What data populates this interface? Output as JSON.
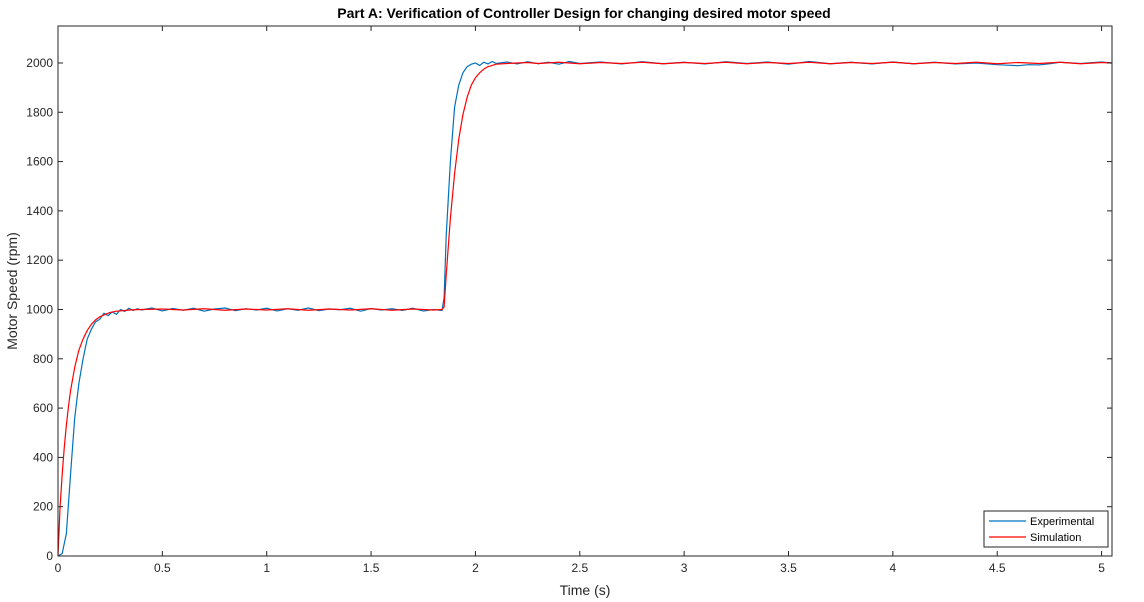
{
  "chart_data": {
    "type": "line",
    "title": "Part A: Verification of Controller Design for changing desired motor speed",
    "xlabel": "Time (s)",
    "ylabel": "Motor Speed (rpm)",
    "xlim": [
      0,
      5.05
    ],
    "ylim": [
      0,
      2150
    ],
    "xticks": [
      0,
      0.5,
      1,
      1.5,
      2,
      2.5,
      3,
      3.5,
      4,
      4.5,
      5
    ],
    "xtick_labels": [
      "0",
      "0.5",
      "1",
      "1.5",
      "2",
      "2.5",
      "3",
      "3.5",
      "4",
      "4.5",
      "5"
    ],
    "yticks": [
      0,
      200,
      400,
      600,
      800,
      1000,
      1200,
      1400,
      1600,
      1800,
      2000
    ],
    "ytick_labels": [
      "0",
      "200",
      "400",
      "600",
      "800",
      "1000",
      "1200",
      "1400",
      "1600",
      "1800",
      "2000"
    ],
    "grid": false,
    "legend_position": "bottom-right",
    "series": [
      {
        "name": "Experimental",
        "color": "#0072BD",
        "x": [
          0,
          0.02,
          0.04,
          0.06,
          0.08,
          0.1,
          0.12,
          0.14,
          0.16,
          0.18,
          0.2,
          0.22,
          0.24,
          0.26,
          0.28,
          0.3,
          0.32,
          0.34,
          0.36,
          0.38,
          0.4,
          0.45,
          0.5,
          0.55,
          0.6,
          0.65,
          0.7,
          0.75,
          0.8,
          0.85,
          0.9,
          0.95,
          1.0,
          1.05,
          1.1,
          1.15,
          1.2,
          1.25,
          1.3,
          1.35,
          1.4,
          1.45,
          1.5,
          1.55,
          1.6,
          1.65,
          1.7,
          1.75,
          1.8,
          1.84,
          1.85,
          1.86,
          1.88,
          1.9,
          1.92,
          1.94,
          1.96,
          1.98,
          2.0,
          2.02,
          2.04,
          2.06,
          2.08,
          2.1,
          2.15,
          2.2,
          2.25,
          2.3,
          2.35,
          2.4,
          2.45,
          2.5,
          2.6,
          2.7,
          2.8,
          2.9,
          3.0,
          3.1,
          3.2,
          3.3,
          3.4,
          3.5,
          3.6,
          3.7,
          3.8,
          3.9,
          4.0,
          4.1,
          4.2,
          4.3,
          4.4,
          4.5,
          4.55,
          4.6,
          4.65,
          4.7,
          4.75,
          4.8,
          4.9,
          5.0,
          5.05
        ],
        "y": [
          0,
          10,
          90,
          330,
          560,
          700,
          800,
          880,
          920,
          950,
          960,
          985,
          975,
          990,
          980,
          1000,
          992,
          1005,
          996,
          1003,
          998,
          1006,
          994,
          1004,
          997,
          1005,
          993,
          1002,
          1006,
          995,
          1003,
          998,
          1005,
          994,
          1003,
          997,
          1006,
          995,
          1002,
          999,
          1005,
          993,
          1004,
          998,
          1003,
          996,
          1005,
          994,
          1000,
          996,
          1050,
          1300,
          1600,
          1820,
          1910,
          1960,
          1985,
          1995,
          2000,
          1990,
          2003,
          1996,
          2006,
          1998,
          2004,
          1996,
          2005,
          1997,
          2003,
          1995,
          2006,
          1998,
          2004,
          1996,
          2005,
          1997,
          2003,
          1996,
          2005,
          1998,
          2004,
          1995,
          2006,
          1997,
          2003,
          1996,
          2004,
          1997,
          2003,
          1996,
          2000,
          1993,
          1991,
          1989,
          1993,
          1992,
          1997,
          2003,
          1998,
          2004,
          2000
        ]
      },
      {
        "name": "Simulation",
        "color": "#FF0000",
        "x": [
          0,
          0.005,
          0.01,
          0.02,
          0.03,
          0.04,
          0.05,
          0.06,
          0.08,
          0.1,
          0.12,
          0.14,
          0.16,
          0.18,
          0.2,
          0.22,
          0.25,
          0.28,
          0.32,
          0.36,
          0.4,
          0.5,
          0.6,
          0.7,
          0.8,
          0.9,
          1.0,
          1.1,
          1.2,
          1.3,
          1.4,
          1.5,
          1.6,
          1.7,
          1.8,
          1.84,
          1.85,
          1.86,
          1.88,
          1.9,
          1.92,
          1.94,
          1.96,
          1.98,
          2.0,
          2.02,
          2.04,
          2.06,
          2.08,
          2.1,
          2.15,
          2.2,
          2.25,
          2.3,
          2.4,
          2.5,
          2.6,
          2.7,
          2.8,
          2.9,
          3.0,
          3.1,
          3.2,
          3.3,
          3.4,
          3.5,
          3.6,
          3.7,
          3.8,
          3.9,
          4.0,
          4.1,
          4.2,
          4.3,
          4.4,
          4.5,
          4.6,
          4.7,
          4.8,
          4.9,
          5.0,
          5.05
        ],
        "y": [
          0,
          100,
          200,
          330,
          440,
          530,
          605,
          670,
          765,
          835,
          880,
          915,
          940,
          958,
          970,
          978,
          988,
          993,
          996,
          999,
          1000,
          1002,
          998,
          1003,
          997,
          1002,
          998,
          1003,
          997,
          1002,
          998,
          1003,
          997,
          1002,
          998,
          1000,
          1010,
          1140,
          1370,
          1550,
          1690,
          1790,
          1860,
          1910,
          1940,
          1960,
          1975,
          1985,
          1990,
          1995,
          1998,
          2000,
          2002,
          1998,
          2003,
          1997,
          2002,
          1998,
          2003,
          1997,
          2002,
          1998,
          2003,
          1997,
          2002,
          1998,
          2003,
          1997,
          2002,
          1998,
          2003,
          1997,
          2002,
          1998,
          2003,
          1997,
          2002,
          1998,
          2003,
          1997,
          2002,
          2000
        ]
      }
    ]
  }
}
